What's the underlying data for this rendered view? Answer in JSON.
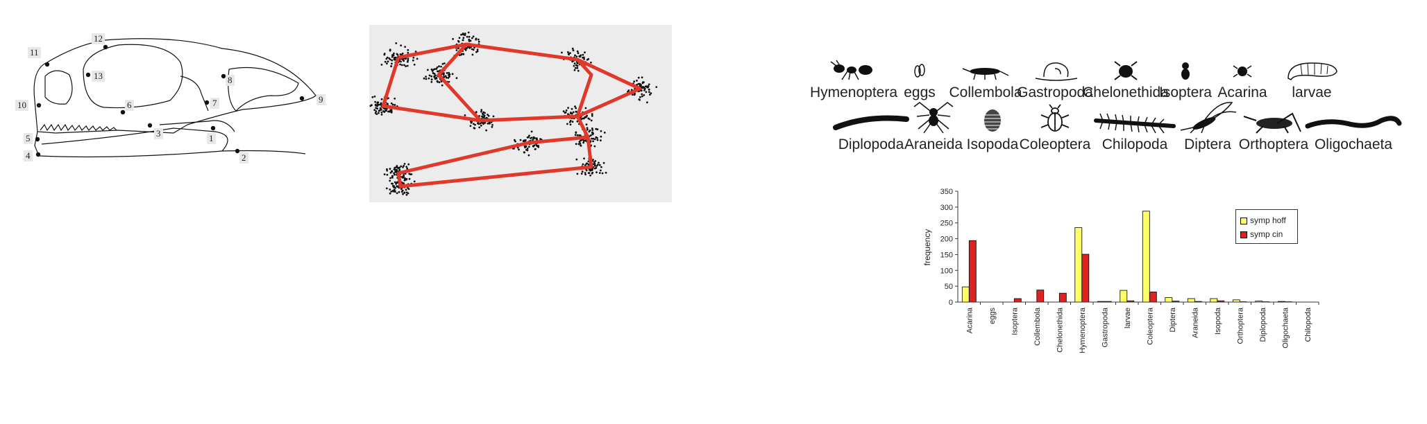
{
  "skull": {
    "landmarks": [
      {
        "id": "lm1",
        "label": "1"
      },
      {
        "id": "lm2",
        "label": "2"
      },
      {
        "id": "lm3",
        "label": "3"
      },
      {
        "id": "lm4",
        "label": "4"
      },
      {
        "id": "lm5",
        "label": "5"
      },
      {
        "id": "lm6",
        "label": "6"
      },
      {
        "id": "lm7",
        "label": "7"
      },
      {
        "id": "lm8",
        "label": "8"
      },
      {
        "id": "lm9",
        "label": "9"
      },
      {
        "id": "lm10",
        "label": "10"
      },
      {
        "id": "lm11",
        "label": "11"
      },
      {
        "id": "lm12",
        "label": "12"
      },
      {
        "id": "lm13",
        "label": "13"
      }
    ]
  },
  "procrustes": {
    "point_color": "#111111",
    "outline_color": "#e0392b",
    "background": "#ececec"
  },
  "prey": {
    "row1": [
      {
        "label": "Hymenoptera",
        "icon": "ant-icon"
      },
      {
        "label": "eggs",
        "icon": "egg-icon"
      },
      {
        "label": "Collembola",
        "icon": "springtail-icon"
      },
      {
        "label": "Gastropoda",
        "icon": "snail-icon"
      },
      {
        "label": "Chelonethida",
        "icon": "pseudoscorpion-icon"
      },
      {
        "label": "Isoptera",
        "icon": "termite-icon"
      },
      {
        "label": "Acarina",
        "icon": "mite-icon"
      },
      {
        "label": "larvae",
        "icon": "larva-icon"
      }
    ],
    "row2": [
      {
        "label": "Diplopoda",
        "icon": "millipede-icon"
      },
      {
        "label": "Araneida",
        "icon": "spider-icon"
      },
      {
        "label": "Isopoda",
        "icon": "woodlouse-icon"
      },
      {
        "label": "Coleoptera",
        "icon": "beetle-icon"
      },
      {
        "label": "Chilopoda",
        "icon": "centipede-icon"
      },
      {
        "label": "Diptera",
        "icon": "fly-icon"
      },
      {
        "label": "Orthoptera",
        "icon": "cricket-icon"
      },
      {
        "label": "Oligochaeta",
        "icon": "earthworm-icon"
      }
    ]
  },
  "chart_data": {
    "type": "bar",
    "title": "",
    "xlabel": "",
    "ylabel": "frequency",
    "ylim": [
      0,
      350
    ],
    "yticks": [
      0,
      50,
      100,
      150,
      200,
      250,
      300,
      350
    ],
    "legend_position": "top-right",
    "grid": false,
    "categories": [
      "Acarina",
      "eggs",
      "Isoptera",
      "Collembola",
      "Chelonethida",
      "Hymenoptera",
      "Gastropoda",
      "larvae",
      "Coleoptera",
      "Diptera",
      "Araneida",
      "Isopoda",
      "Orthoptera",
      "Diplopoda",
      "Oligochaeta",
      "Chilopoda"
    ],
    "series": [
      {
        "name": "symp hoff",
        "color": "#ffff66",
        "values": [
          48,
          0,
          0,
          0,
          0,
          235,
          2,
          37,
          287,
          14,
          11,
          11,
          7,
          3,
          2,
          0
        ]
      },
      {
        "name": "symp cin",
        "color": "#dd2222",
        "values": [
          194,
          0,
          11,
          38,
          28,
          151,
          2,
          4,
          32,
          3,
          2,
          4,
          1,
          1,
          1,
          0
        ]
      }
    ]
  }
}
